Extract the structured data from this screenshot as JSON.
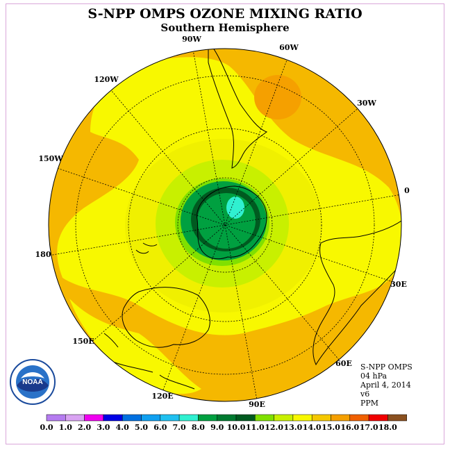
{
  "header": {
    "title": "S-NPP OMPS OZONE MIXING RATIO",
    "subtitle": "Southern Hemisphere"
  },
  "map": {
    "projection": "south-polar-stereographic",
    "longitude_labels": [
      "90W",
      "60W",
      "30W",
      "0",
      "30E",
      "60E",
      "90E",
      "120E",
      "150E",
      "180",
      "150W",
      "120W"
    ],
    "colors": {
      "land_outline": "#000000",
      "background_field": "#f5b800"
    }
  },
  "info": {
    "satellite": "S-NPP OMPS",
    "pressure": "04 hPa",
    "date": "April 4, 2014",
    "version": "v6",
    "units": "PPM"
  },
  "logo": {
    "text": "NOAA"
  },
  "legend": {
    "ticks": [
      "0.0",
      "1.0",
      "2.0",
      "3.0",
      "4.0",
      "5.0",
      "6.0",
      "7.0",
      "8.0",
      "9.0",
      "10.0",
      "11.0",
      "12.0",
      "13.0",
      "14.0",
      "15.0",
      "16.0",
      "17.0",
      "18.0"
    ],
    "colors": [
      "#b57cf0",
      "#d9a3f2",
      "#f000f0",
      "#0000e6",
      "#0070e0",
      "#10a0f0",
      "#20c0f0",
      "#30f0d0",
      "#00a040",
      "#007a30",
      "#005a20",
      "#80e000",
      "#c8f000",
      "#f8f800",
      "#f5c800",
      "#f5a000",
      "#f06000",
      "#f00000",
      "#8a5020"
    ]
  }
}
